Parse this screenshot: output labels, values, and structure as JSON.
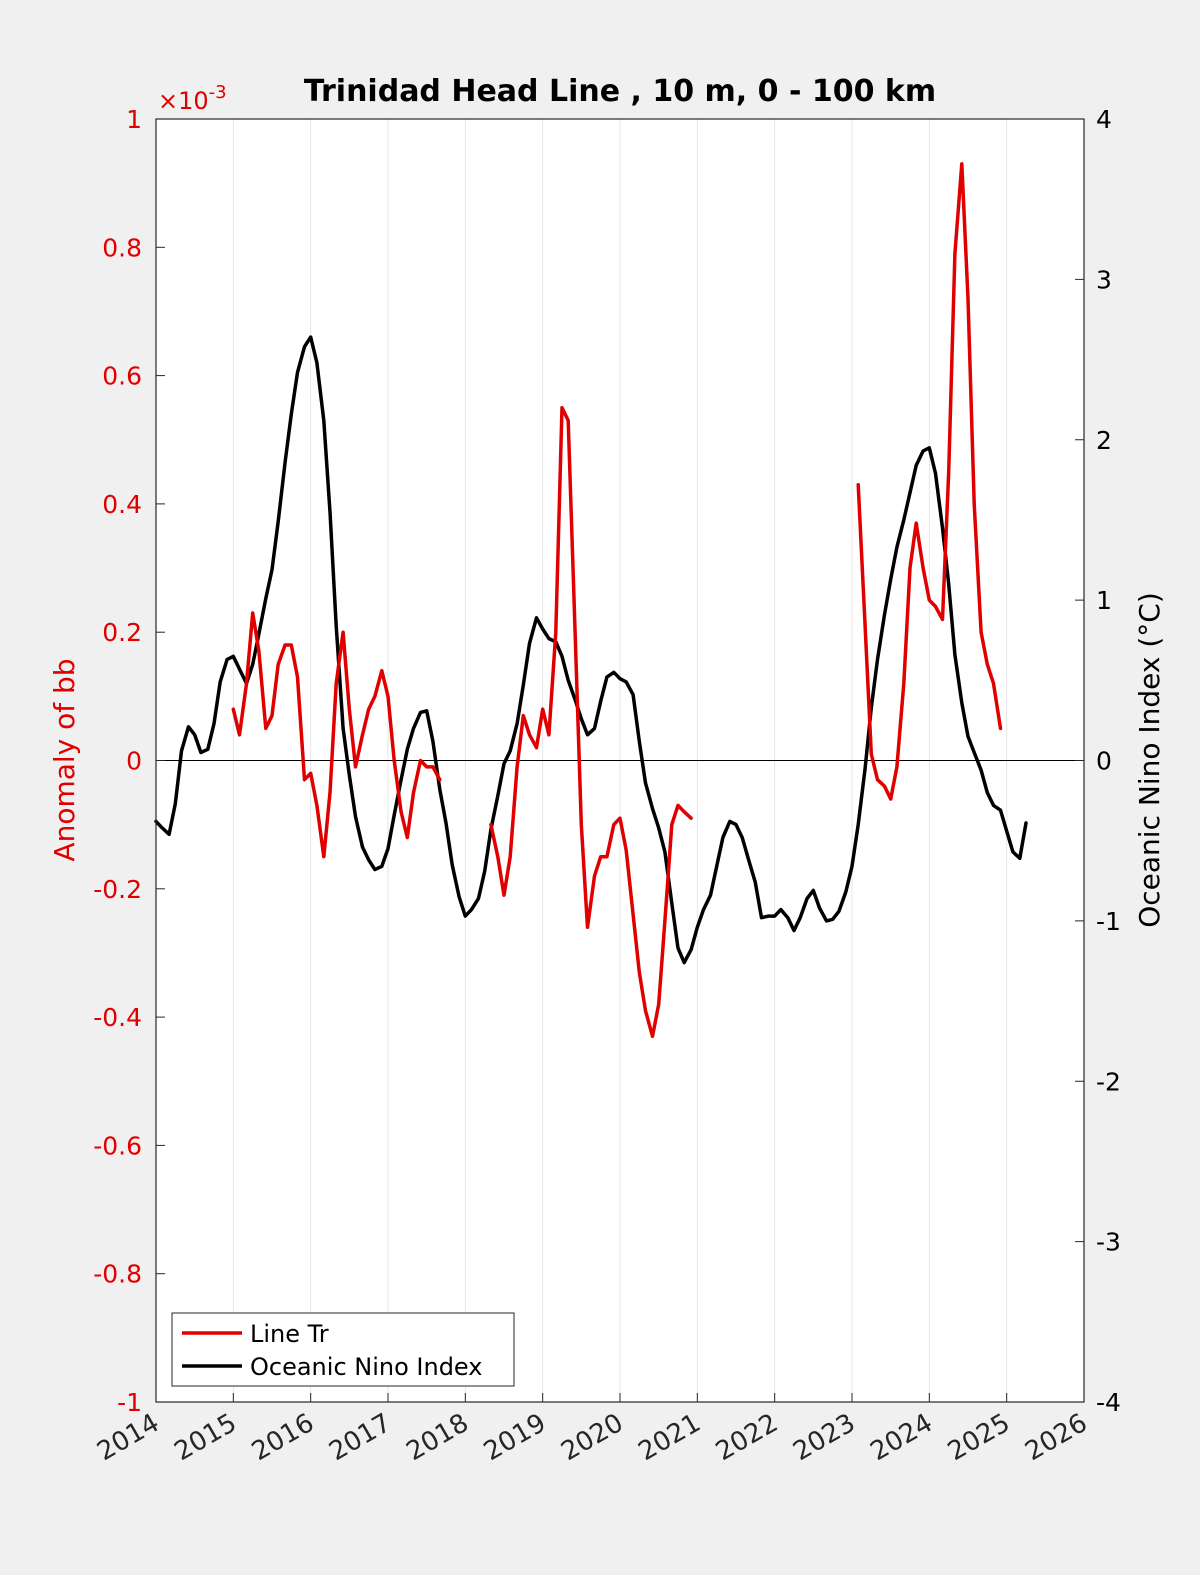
{
  "chart_data": {
    "type": "line",
    "title": "Trinidad Head Line , 10 m, 0 - 100 km",
    "xlabel": "",
    "ylabel_left": "Anomaly of bb",
    "ylabel_right": "Oceanic Nino Index (°C)",
    "left_axis_exponent": "×10",
    "left_axis_exponent_power": "-3",
    "xlim": [
      2014,
      2026
    ],
    "ylim_left": [
      -1,
      1
    ],
    "ylim_right": [
      -4,
      4
    ],
    "x_ticks": [
      "2014",
      "2015",
      "2016",
      "2017",
      "2018",
      "2019",
      "2020",
      "2021",
      "2022",
      "2023",
      "2024",
      "2025",
      "2026"
    ],
    "y_ticks_left": [
      "1",
      "0.8",
      "0.6",
      "0.4",
      "0.2",
      "0",
      "-0.2",
      "-0.4",
      "-0.6",
      "-0.8",
      "-1"
    ],
    "y_ticks_right": [
      "4",
      "3",
      "2",
      "1",
      "0",
      "-1",
      "-2",
      "-3",
      "-4"
    ],
    "vertical_grid": true,
    "legend_position": "bottom-left",
    "colors": {
      "line_tr": "#e00000",
      "oni": "#000000",
      "left_axis": "#e00000",
      "right_axis": "#000000"
    },
    "series": [
      {
        "name": "Line Tr",
        "axis": "left",
        "color": "#e00000",
        "segments": [
          [
            [
              2015.0,
              0.08
            ],
            [
              2015.08,
              0.04
            ],
            [
              2015.17,
              0.12
            ],
            [
              2015.25,
              0.23
            ],
            [
              2015.33,
              0.17
            ],
            [
              2015.42,
              0.05
            ],
            [
              2015.5,
              0.07
            ],
            [
              2015.58,
              0.15
            ],
            [
              2015.67,
              0.18
            ],
            [
              2015.75,
              0.18
            ],
            [
              2015.83,
              0.13
            ],
            [
              2015.92,
              -0.03
            ],
            [
              2016.0,
              -0.02
            ],
            [
              2016.08,
              -0.07
            ],
            [
              2016.17,
              -0.15
            ],
            [
              2016.25,
              -0.05
            ],
            [
              2016.33,
              0.12
            ],
            [
              2016.42,
              0.2
            ],
            [
              2016.5,
              0.08
            ],
            [
              2016.58,
              -0.01
            ],
            [
              2016.67,
              0.04
            ],
            [
              2016.75,
              0.08
            ],
            [
              2016.83,
              0.1
            ],
            [
              2016.92,
              0.14
            ],
            [
              2017.0,
              0.1
            ],
            [
              2017.08,
              0.0
            ],
            [
              2017.17,
              -0.08
            ],
            [
              2017.25,
              -0.12
            ],
            [
              2017.33,
              -0.05
            ],
            [
              2017.42,
              0.0
            ],
            [
              2017.5,
              -0.01
            ],
            [
              2017.58,
              -0.01
            ],
            [
              2017.67,
              -0.03
            ]
          ],
          [
            [
              2018.33,
              -0.1
            ],
            [
              2018.42,
              -0.15
            ],
            [
              2018.5,
              -0.21
            ],
            [
              2018.58,
              -0.15
            ],
            [
              2018.67,
              -0.01
            ],
            [
              2018.75,
              0.07
            ],
            [
              2018.83,
              0.04
            ],
            [
              2018.92,
              0.02
            ],
            [
              2019.0,
              0.08
            ],
            [
              2019.08,
              0.04
            ],
            [
              2019.17,
              0.2
            ],
            [
              2019.25,
              0.55
            ],
            [
              2019.33,
              0.53
            ],
            [
              2019.42,
              0.2
            ],
            [
              2019.5,
              -0.1
            ],
            [
              2019.58,
              -0.26
            ],
            [
              2019.67,
              -0.18
            ],
            [
              2019.75,
              -0.15
            ],
            [
              2019.83,
              -0.15
            ],
            [
              2019.92,
              -0.1
            ],
            [
              2020.0,
              -0.09
            ],
            [
              2020.08,
              -0.14
            ],
            [
              2020.17,
              -0.24
            ],
            [
              2020.25,
              -0.33
            ],
            [
              2020.33,
              -0.39
            ],
            [
              2020.42,
              -0.43
            ],
            [
              2020.5,
              -0.38
            ],
            [
              2020.58,
              -0.25
            ],
            [
              2020.67,
              -0.1
            ],
            [
              2020.75,
              -0.07
            ],
            [
              2020.83,
              -0.08
            ],
            [
              2020.92,
              -0.09
            ]
          ],
          [
            [
              2023.08,
              0.43
            ],
            [
              2023.17,
              0.21
            ],
            [
              2023.25,
              0.01
            ],
            [
              2023.33,
              -0.03
            ],
            [
              2023.42,
              -0.04
            ],
            [
              2023.5,
              -0.06
            ],
            [
              2023.58,
              -0.01
            ],
            [
              2023.67,
              0.12
            ],
            [
              2023.75,
              0.3
            ],
            [
              2023.83,
              0.37
            ],
            [
              2023.92,
              0.3
            ],
            [
              2024.0,
              0.25
            ],
            [
              2024.08,
              0.24
            ],
            [
              2024.17,
              0.22
            ],
            [
              2024.25,
              0.45
            ],
            [
              2024.33,
              0.79
            ],
            [
              2024.42,
              0.93
            ],
            [
              2024.5,
              0.72
            ],
            [
              2024.58,
              0.4
            ],
            [
              2024.67,
              0.2
            ],
            [
              2024.75,
              0.15
            ],
            [
              2024.83,
              0.12
            ],
            [
              2024.92,
              0.05
            ]
          ]
        ]
      },
      {
        "name": "Oceanic Nino Index",
        "axis": "right",
        "color": "#000000",
        "segments": [
          [
            [
              2014.0,
              -0.38
            ],
            [
              2014.08,
              -0.42
            ],
            [
              2014.17,
              -0.46
            ],
            [
              2014.25,
              -0.27
            ],
            [
              2014.33,
              0.06
            ],
            [
              2014.42,
              0.21
            ],
            [
              2014.5,
              0.16
            ],
            [
              2014.58,
              0.05
            ],
            [
              2014.67,
              0.07
            ],
            [
              2014.75,
              0.23
            ],
            [
              2014.83,
              0.49
            ],
            [
              2014.92,
              0.63
            ],
            [
              2015.0,
              0.65
            ],
            [
              2015.08,
              0.57
            ],
            [
              2015.17,
              0.48
            ],
            [
              2015.25,
              0.6
            ],
            [
              2015.33,
              0.79
            ],
            [
              2015.42,
              1.01
            ],
            [
              2015.5,
              1.19
            ],
            [
              2015.58,
              1.49
            ],
            [
              2015.67,
              1.86
            ],
            [
              2015.75,
              2.16
            ],
            [
              2015.83,
              2.42
            ],
            [
              2015.92,
              2.58
            ],
            [
              2016.0,
              2.64
            ],
            [
              2016.08,
              2.48
            ],
            [
              2016.17,
              2.12
            ],
            [
              2016.25,
              1.55
            ],
            [
              2016.33,
              0.84
            ],
            [
              2016.42,
              0.2
            ],
            [
              2016.5,
              -0.09
            ],
            [
              2016.58,
              -0.35
            ],
            [
              2016.67,
              -0.54
            ],
            [
              2016.75,
              -0.62
            ],
            [
              2016.83,
              -0.68
            ],
            [
              2016.92,
              -0.66
            ],
            [
              2017.0,
              -0.55
            ],
            [
              2017.08,
              -0.34
            ],
            [
              2017.17,
              -0.12
            ],
            [
              2017.25,
              0.07
            ],
            [
              2017.33,
              0.2
            ],
            [
              2017.42,
              0.3
            ],
            [
              2017.5,
              0.31
            ],
            [
              2017.58,
              0.12
            ],
            [
              2017.67,
              -0.18
            ],
            [
              2017.75,
              -0.39
            ],
            [
              2017.83,
              -0.65
            ],
            [
              2017.92,
              -0.85
            ],
            [
              2018.0,
              -0.97
            ],
            [
              2018.08,
              -0.93
            ],
            [
              2018.17,
              -0.86
            ],
            [
              2018.25,
              -0.69
            ],
            [
              2018.33,
              -0.43
            ],
            [
              2018.42,
              -0.22
            ],
            [
              2018.5,
              -0.02
            ],
            [
              2018.58,
              0.06
            ],
            [
              2018.67,
              0.23
            ],
            [
              2018.75,
              0.47
            ],
            [
              2018.83,
              0.73
            ],
            [
              2018.92,
              0.89
            ],
            [
              2019.0,
              0.82
            ],
            [
              2019.08,
              0.76
            ],
            [
              2019.17,
              0.74
            ],
            [
              2019.25,
              0.65
            ],
            [
              2019.33,
              0.5
            ],
            [
              2019.42,
              0.38
            ],
            [
              2019.5,
              0.26
            ],
            [
              2019.58,
              0.16
            ],
            [
              2019.67,
              0.2
            ],
            [
              2019.75,
              0.37
            ],
            [
              2019.83,
              0.52
            ],
            [
              2019.92,
              0.55
            ],
            [
              2020.0,
              0.51
            ],
            [
              2020.08,
              0.49
            ],
            [
              2020.17,
              0.41
            ],
            [
              2020.25,
              0.12
            ],
            [
              2020.33,
              -0.14
            ],
            [
              2020.42,
              -0.3
            ],
            [
              2020.5,
              -0.42
            ],
            [
              2020.58,
              -0.57
            ],
            [
              2020.67,
              -0.89
            ],
            [
              2020.75,
              -1.17
            ],
            [
              2020.83,
              -1.26
            ],
            [
              2020.92,
              -1.18
            ],
            [
              2021.0,
              -1.04
            ],
            [
              2021.08,
              -0.93
            ],
            [
              2021.17,
              -0.84
            ],
            [
              2021.25,
              -0.66
            ],
            [
              2021.33,
              -0.48
            ],
            [
              2021.42,
              -0.38
            ],
            [
              2021.5,
              -0.4
            ],
            [
              2021.58,
              -0.48
            ],
            [
              2021.67,
              -0.63
            ],
            [
              2021.75,
              -0.76
            ],
            [
              2021.83,
              -0.98
            ],
            [
              2021.92,
              -0.97
            ],
            [
              2022.0,
              -0.97
            ],
            [
              2022.08,
              -0.93
            ],
            [
              2022.17,
              -0.98
            ],
            [
              2022.25,
              -1.06
            ],
            [
              2022.33,
              -0.98
            ],
            [
              2022.42,
              -0.86
            ],
            [
              2022.5,
              -0.81
            ],
            [
              2022.58,
              -0.92
            ],
            [
              2022.67,
              -1.0
            ],
            [
              2022.75,
              -0.99
            ],
            [
              2022.83,
              -0.94
            ],
            [
              2022.92,
              -0.82
            ],
            [
              2023.0,
              -0.66
            ],
            [
              2023.08,
              -0.4
            ],
            [
              2023.17,
              -0.05
            ],
            [
              2023.25,
              0.33
            ],
            [
              2023.33,
              0.63
            ],
            [
              2023.42,
              0.91
            ],
            [
              2023.5,
              1.13
            ],
            [
              2023.58,
              1.33
            ],
            [
              2023.67,
              1.5
            ],
            [
              2023.75,
              1.67
            ],
            [
              2023.83,
              1.84
            ],
            [
              2023.92,
              1.93
            ],
            [
              2024.0,
              1.95
            ],
            [
              2024.08,
              1.79
            ],
            [
              2024.17,
              1.45
            ],
            [
              2024.25,
              1.1
            ],
            [
              2024.33,
              0.66
            ],
            [
              2024.42,
              0.36
            ],
            [
              2024.5,
              0.15
            ],
            [
              2024.58,
              0.05
            ],
            [
              2024.67,
              -0.06
            ],
            [
              2024.75,
              -0.2
            ],
            [
              2024.83,
              -0.28
            ],
            [
              2024.92,
              -0.31
            ],
            [
              2025.0,
              -0.44
            ],
            [
              2025.08,
              -0.57
            ],
            [
              2025.17,
              -0.61
            ],
            [
              2025.25,
              -0.39
            ]
          ]
        ]
      }
    ]
  }
}
